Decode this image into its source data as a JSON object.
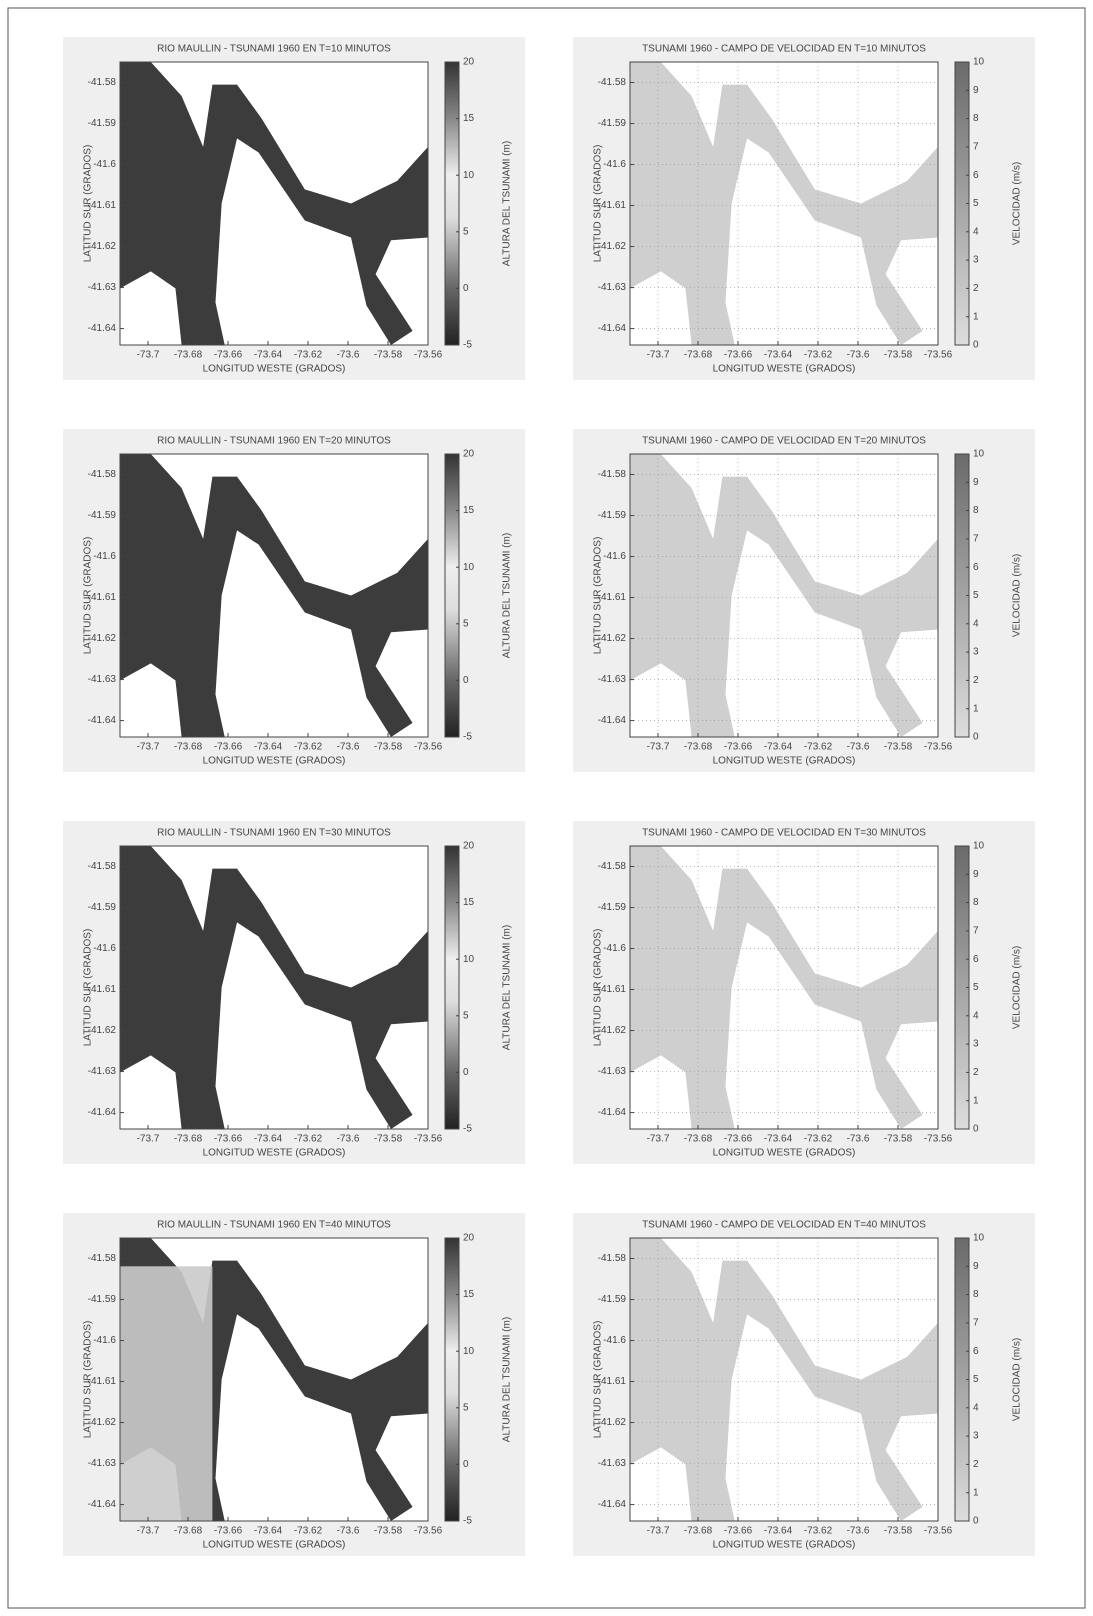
{
  "chart_data": [
    {
      "type": "heatmap",
      "title": "RIO MAULLIN - TSUNAMI 1960 EN T=10 MINUTOS",
      "xlabel": "LONGITUD WESTE (GRADOS)",
      "ylabel": "LATITUD SUR (GRADOS)",
      "xlim": [
        -73.714,
        -73.56
      ],
      "ylim": [
        -41.644,
        -41.575
      ],
      "xticks": [
        -73.7,
        -73.68,
        -73.66,
        -73.64,
        -73.62,
        -73.6,
        -73.58,
        -73.56
      ],
      "yticks": [
        -41.58,
        -41.59,
        -41.6,
        -41.61,
        -41.62,
        -41.63,
        -41.64
      ],
      "colorbar": {
        "label": "ALTURA DEL TSUNAMI (m)",
        "lim": [
          -5,
          20
        ],
        "ticks": [
          -5,
          0,
          5,
          10,
          15,
          20
        ]
      },
      "grid": false
    },
    {
      "type": "heatmap",
      "title": "TSUNAMI 1960 - CAMPO DE VELOCIDAD EN T=10 MINUTOS",
      "xlabel": "LONGITUD WESTE (GRADOS)",
      "ylabel": "LATITUD SUR (GRADOS)",
      "xlim": [
        -73.714,
        -73.56
      ],
      "ylim": [
        -41.644,
        -41.575
      ],
      "xticks": [
        -73.7,
        -73.68,
        -73.66,
        -73.64,
        -73.62,
        -73.6,
        -73.58,
        -73.56
      ],
      "yticks": [
        -41.58,
        -41.59,
        -41.6,
        -41.61,
        -41.62,
        -41.63,
        -41.64
      ],
      "colorbar": {
        "label": "VELOCIDAD (m/s)",
        "lim": [
          0,
          10
        ],
        "ticks": [
          0,
          1,
          2,
          3,
          4,
          5,
          6,
          7,
          8,
          9,
          10
        ]
      },
      "grid": true
    },
    {
      "type": "heatmap",
      "title": "RIO MAULLIN - TSUNAMI 1960 EN T=20 MINUTOS",
      "xlabel": "LONGITUD WESTE (GRADOS)",
      "ylabel": "LATITUD SUR (GRADOS)",
      "xlim": [
        -73.714,
        -73.56
      ],
      "ylim": [
        -41.644,
        -41.575
      ],
      "xticks": [
        -73.7,
        -73.68,
        -73.66,
        -73.64,
        -73.62,
        -73.6,
        -73.58,
        -73.56
      ],
      "yticks": [
        -41.58,
        -41.59,
        -41.6,
        -41.61,
        -41.62,
        -41.63,
        -41.64
      ],
      "colorbar": {
        "label": "ALTURA DEL TSUNAMI (m)",
        "lim": [
          -5,
          20
        ],
        "ticks": [
          -5,
          0,
          5,
          10,
          15,
          20
        ]
      },
      "grid": false
    },
    {
      "type": "heatmap",
      "title": "TSUNAMI 1960 - CAMPO DE VELOCIDAD EN T=20 MINUTOS",
      "xlabel": "LONGITUD WESTE (GRADOS)",
      "ylabel": "LATITUD SUR (GRADOS)",
      "xlim": [
        -73.714,
        -73.56
      ],
      "ylim": [
        -41.644,
        -41.575
      ],
      "xticks": [
        -73.7,
        -73.68,
        -73.66,
        -73.64,
        -73.62,
        -73.6,
        -73.58,
        -73.56
      ],
      "yticks": [
        -41.58,
        -41.59,
        -41.6,
        -41.61,
        -41.62,
        -41.63,
        -41.64
      ],
      "colorbar": {
        "label": "VELOCIDAD (m/s)",
        "lim": [
          0,
          10
        ],
        "ticks": [
          0,
          1,
          2,
          3,
          4,
          5,
          6,
          7,
          8,
          9,
          10
        ]
      },
      "grid": true
    },
    {
      "type": "heatmap",
      "title": "RIO MAULLIN - TSUNAMI 1960 EN T=30 MINUTOS",
      "xlabel": "LONGITUD WESTE (GRADOS)",
      "ylabel": "LATITUD SUR (GRADOS)",
      "xlim": [
        -73.714,
        -73.56
      ],
      "ylim": [
        -41.644,
        -41.575
      ],
      "xticks": [
        -73.7,
        -73.68,
        -73.66,
        -73.64,
        -73.62,
        -73.6,
        -73.58,
        -73.56
      ],
      "yticks": [
        -41.58,
        -41.59,
        -41.6,
        -41.61,
        -41.62,
        -41.63,
        -41.64
      ],
      "colorbar": {
        "label": "ALTURA DEL TSUNAMI (m)",
        "lim": [
          -5,
          20
        ],
        "ticks": [
          -5,
          0,
          5,
          10,
          15,
          20
        ]
      },
      "grid": false
    },
    {
      "type": "heatmap",
      "title": "TSUNAMI 1960 - CAMPO DE VELOCIDAD EN T=30 MINUTOS",
      "xlabel": "LONGITUD WESTE (GRADOS)",
      "ylabel": "LATITUD SUR (GRADOS)",
      "xlim": [
        -73.714,
        -73.56
      ],
      "ylim": [
        -41.644,
        -41.575
      ],
      "xticks": [
        -73.7,
        -73.68,
        -73.66,
        -73.64,
        -73.62,
        -73.6,
        -73.58,
        -73.56
      ],
      "yticks": [
        -41.58,
        -41.59,
        -41.6,
        -41.61,
        -41.62,
        -41.63,
        -41.64
      ],
      "colorbar": {
        "label": "VELOCIDAD (m/s)",
        "lim": [
          0,
          10
        ],
        "ticks": [
          0,
          1,
          2,
          3,
          4,
          5,
          6,
          7,
          8,
          9,
          10
        ]
      },
      "grid": true
    },
    {
      "type": "heatmap",
      "title": "RIO MAULLIN - TSUNAMI 1960 EN T=40 MINUTOS",
      "xlabel": "LONGITUD WESTE (GRADOS)",
      "ylabel": "LATITUD SUR (GRADOS)",
      "xlim": [
        -73.714,
        -73.56
      ],
      "ylim": [
        -41.644,
        -41.575
      ],
      "xticks": [
        -73.7,
        -73.68,
        -73.66,
        -73.64,
        -73.62,
        -73.6,
        -73.58,
        -73.56
      ],
      "yticks": [
        -41.58,
        -41.59,
        -41.6,
        -41.61,
        -41.62,
        -41.63,
        -41.64
      ],
      "colorbar": {
        "label": "ALTURA DEL TSUNAMI (m)",
        "lim": [
          -5,
          20
        ],
        "ticks": [
          -5,
          0,
          5,
          10,
          15,
          20
        ]
      },
      "grid": false
    },
    {
      "type": "heatmap",
      "title": "TSUNAMI 1960 - CAMPO DE VELOCIDAD EN T=40 MINUTOS",
      "xlabel": "LONGITUD WESTE (GRADOS)",
      "ylabel": "LATITUD SUR (GRADOS)",
      "xlim": [
        -73.714,
        -73.56
      ],
      "ylim": [
        -41.644,
        -41.575
      ],
      "xticks": [
        -73.7,
        -73.68,
        -73.66,
        -73.64,
        -73.62,
        -73.6,
        -73.58,
        -73.56
      ],
      "yticks": [
        -41.58,
        -41.59,
        -41.6,
        -41.61,
        -41.62,
        -41.63,
        -41.64
      ],
      "colorbar": {
        "label": "VELOCIDAD (m/s)",
        "lim": [
          0,
          10
        ],
        "ticks": [
          0,
          1,
          2,
          3,
          4,
          5,
          6,
          7,
          8,
          9,
          10
        ]
      },
      "grid": true
    }
  ]
}
